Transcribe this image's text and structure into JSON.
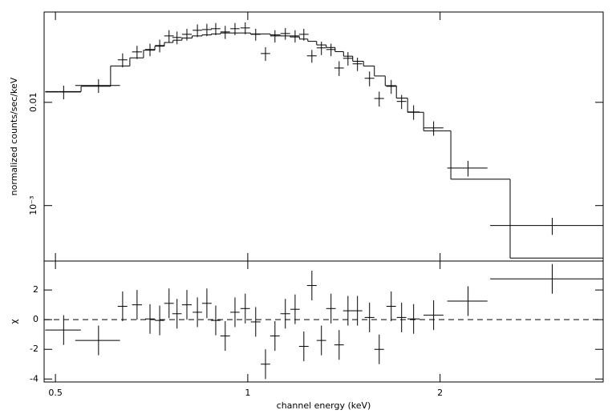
{
  "chart_data": [
    {
      "type": "errorbar",
      "y_label": "normalized counts/sec/keV",
      "xscale": "log",
      "yscale": "log",
      "xlim": [
        0.48,
        3.6
      ],
      "ylim": [
        0.00029,
        0.075
      ],
      "yticks": [
        0.01,
        {
          "value": 0.001,
          "label": "10⁻³"
        }
      ],
      "x": [
        0.515,
        0.584,
        0.637,
        0.671,
        0.703,
        0.728,
        0.753,
        0.775,
        0.803,
        0.834,
        0.863,
        0.891,
        0.922,
        0.955,
        0.991,
        1.029,
        1.066,
        1.103,
        1.145,
        1.186,
        1.224,
        1.26,
        1.304,
        1.35,
        1.39,
        1.435,
        1.485,
        1.551,
        1.606,
        1.677,
        1.741,
        1.818,
        1.954,
        2.212,
        2.996
      ],
      "xerr": [
        0.033,
        0.047,
        0.011,
        0.012,
        0.012,
        0.012,
        0.013,
        0.013,
        0.014,
        0.014,
        0.015,
        0.015,
        0.016,
        0.016,
        0.017,
        0.018,
        0.018,
        0.019,
        0.02,
        0.02,
        0.021,
        0.022,
        0.022,
        0.023,
        0.024,
        0.025,
        0.026,
        0.027,
        0.028,
        0.029,
        0.03,
        0.04,
        0.07,
        0.16,
        0.6
      ],
      "values": [
        0.0126,
        0.01455,
        0.0258,
        0.0308,
        0.0325,
        0.0355,
        0.044,
        0.0425,
        0.0456,
        0.0499,
        0.0507,
        0.0517,
        0.0481,
        0.0517,
        0.0526,
        0.0456,
        0.0297,
        0.044,
        0.0464,
        0.044,
        0.0456,
        0.0282,
        0.0337,
        0.0325,
        0.0215,
        0.0267,
        0.0236,
        0.0171,
        0.0109,
        0.0143,
        0.0102,
        0.00807,
        0.00565,
        0.00231,
        0.00064
      ],
      "yerr": [
        0.0019,
        0.0022,
        0.004,
        0.0045,
        0.0045,
        0.005,
        0.006,
        0.006,
        0.006,
        0.007,
        0.007,
        0.007,
        0.007,
        0.007,
        0.007,
        0.006,
        0.0045,
        0.006,
        0.006,
        0.006,
        0.006,
        0.004,
        0.005,
        0.0045,
        0.0035,
        0.004,
        0.0035,
        0.0028,
        0.0018,
        0.0022,
        0.0016,
        0.0013,
        0.0009,
        0.0004,
        0.00012
      ],
      "model": [
        0.0127,
        0.0143,
        0.0225,
        0.027,
        0.032,
        0.035,
        0.038,
        0.04,
        0.042,
        0.044,
        0.045,
        0.046,
        0.047,
        0.047,
        0.047,
        0.046,
        0.046,
        0.045,
        0.044,
        0.043,
        0.041,
        0.039,
        0.036,
        0.034,
        0.031,
        0.028,
        0.025,
        0.0225,
        0.018,
        0.0145,
        0.011,
        0.008,
        0.0053,
        0.0018,
        0.00031
      ]
    },
    {
      "type": "errorbar",
      "y_label": "χ",
      "x_label": "channel energy (keV)",
      "xscale": "log",
      "yscale": "linear",
      "xlim": [
        0.48,
        3.6
      ],
      "ylim": [
        -4.2,
        3.95
      ],
      "xticks": [
        0.5,
        1,
        2
      ],
      "yticks": [
        -4,
        -2,
        0,
        2
      ],
      "hline": 0,
      "x": [
        0.515,
        0.584,
        0.637,
        0.671,
        0.703,
        0.728,
        0.753,
        0.775,
        0.803,
        0.834,
        0.863,
        0.891,
        0.922,
        0.955,
        0.991,
        1.029,
        1.066,
        1.103,
        1.145,
        1.186,
        1.224,
        1.26,
        1.304,
        1.35,
        1.39,
        1.435,
        1.485,
        1.551,
        1.606,
        1.677,
        1.741,
        1.818,
        1.954,
        2.212,
        2.996
      ],
      "xerr": [
        0.033,
        0.047,
        0.011,
        0.012,
        0.012,
        0.012,
        0.013,
        0.013,
        0.014,
        0.014,
        0.015,
        0.015,
        0.016,
        0.016,
        0.017,
        0.018,
        0.018,
        0.019,
        0.02,
        0.02,
        0.021,
        0.022,
        0.022,
        0.023,
        0.024,
        0.025,
        0.026,
        0.027,
        0.028,
        0.029,
        0.03,
        0.04,
        0.07,
        0.16,
        0.6
      ],
      "values": [
        -0.7,
        -1.4,
        0.9,
        1.0,
        0.05,
        -0.05,
        1.1,
        0.4,
        1.0,
        0.5,
        1.1,
        -0.05,
        -1.1,
        0.5,
        0.75,
        -0.15,
        -3.0,
        -1.1,
        0.4,
        0.7,
        -1.8,
        2.3,
        -1.4,
        0.75,
        -1.7,
        0.6,
        0.6,
        0.15,
        -2.0,
        0.9,
        0.15,
        0.05,
        0.3,
        1.25,
        2.75
      ],
      "yerr": [
        1,
        1,
        1,
        1,
        1,
        1,
        1,
        1,
        1,
        1,
        1,
        1,
        1,
        1,
        1,
        1,
        1,
        1,
        1,
        1,
        1,
        1,
        1,
        1,
        1,
        1,
        1,
        1,
        1,
        1,
        1,
        1,
        1,
        1,
        1
      ]
    }
  ]
}
